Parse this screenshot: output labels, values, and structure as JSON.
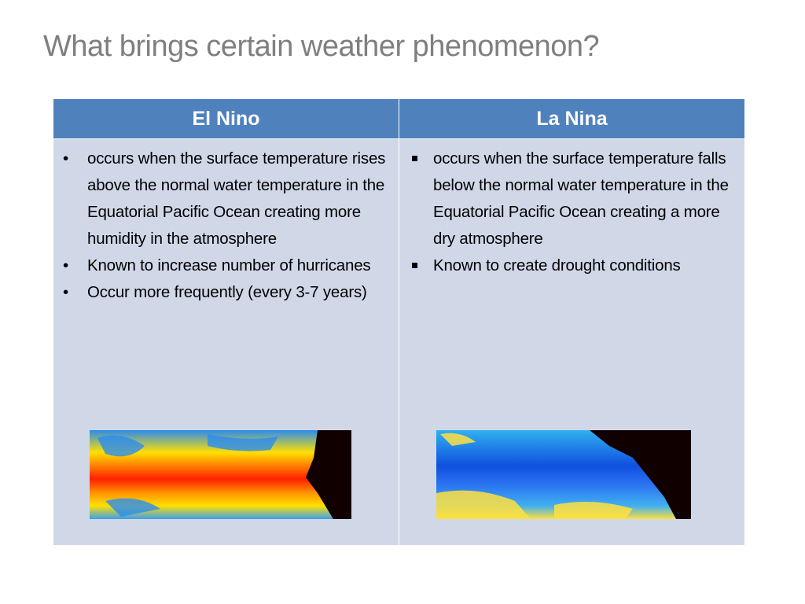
{
  "title": "What brings certain weather phenomenon?",
  "table": {
    "headers": [
      "El Nino",
      "La Nina"
    ],
    "columns": [
      [
        "occurs when the surface temperature rises above the normal water temperature in the Equatorial Pacific Ocean creating more humidity in the atmosphere",
        "Known to increase number of hurricanes",
        "Occur more frequently (every 3-7 years)"
      ],
      [
        "occurs when the surface temperature falls below the normal water temperature in the Equatorial Pacific Ocean creating a more dry atmosphere",
        "Known to create drought conditions"
      ]
    ]
  }
}
